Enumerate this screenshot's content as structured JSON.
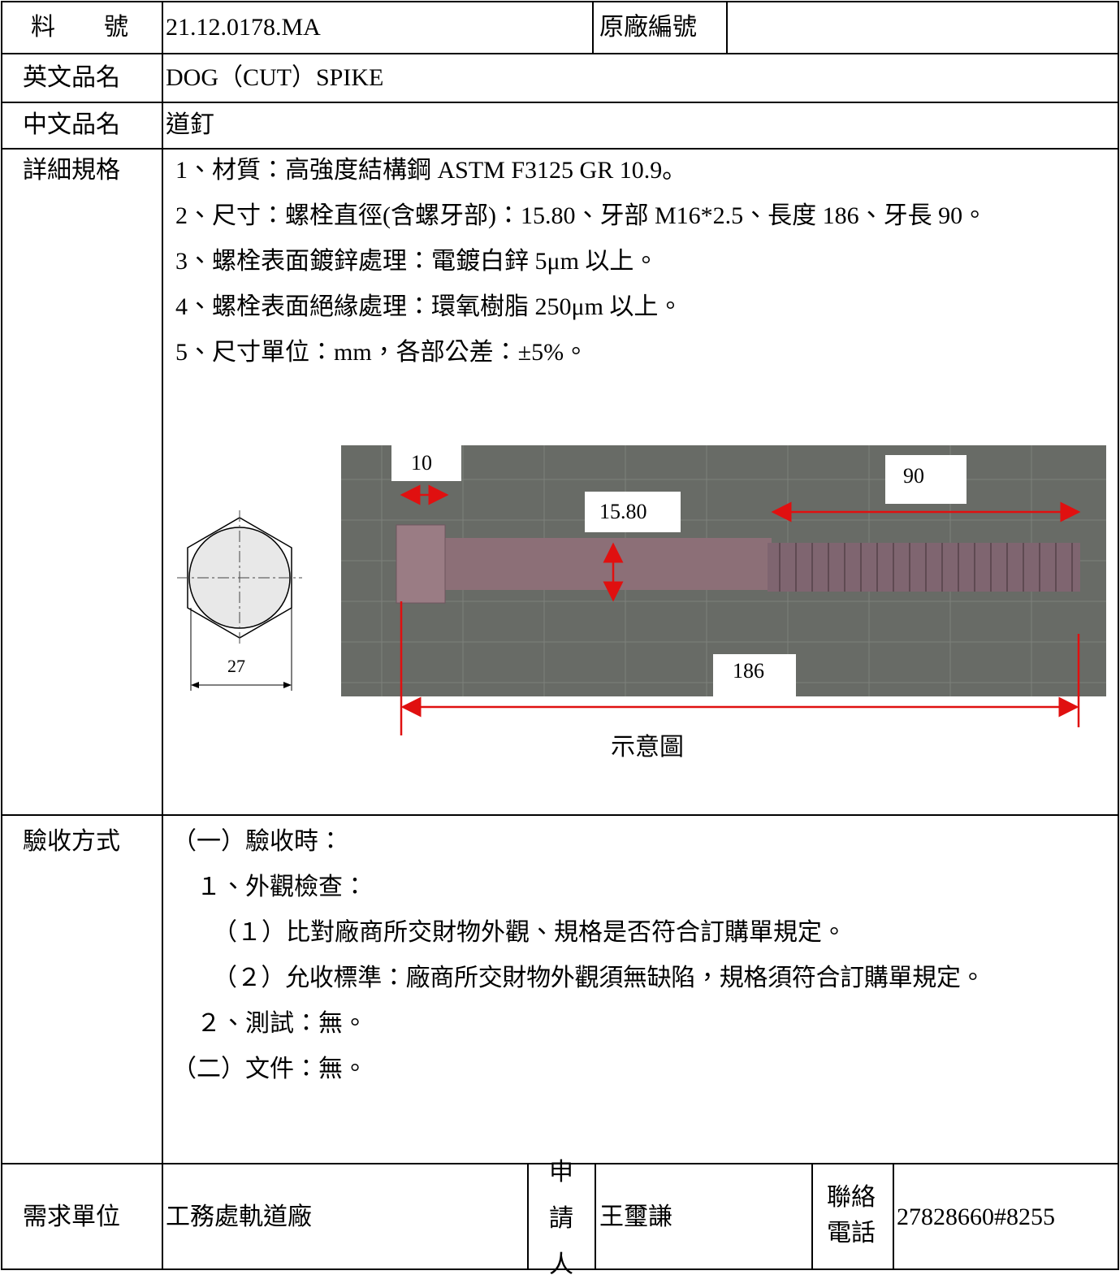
{
  "header": {
    "part_no_label": "料　　號",
    "part_no": "21.12.0178.MA",
    "orig_no_label": "原廠編號",
    "english_name_label": "英文品名",
    "english_name": "DOG（CUT）SPIKE",
    "chinese_name_label": "中文品名",
    "chinese_name": "道釘"
  },
  "spec": {
    "label": "詳細規格",
    "lines": [
      "1、材質：高強度結構鋼 ASTM F3125 GR 10.9。",
      "2、尺寸：螺栓直徑(含螺牙部)：15.80、牙部 M16*2.5、長度 186、牙長 90。",
      "3、螺栓表面鍍鋅處理：電鍍白鋅 5μm 以上。",
      "4、螺栓表面絕緣處理：環氧樹脂 250μm 以上。",
      "5、尺寸單位：mm，各部公差：±5%。"
    ],
    "diagram": {
      "head_length": "10",
      "thread_length": "90",
      "diameter": "15.80",
      "hex_width": "27",
      "total_length": "186",
      "caption": "示意圖"
    }
  },
  "acceptance": {
    "label": "驗收方式",
    "lines": [
      "（一）驗收時：",
      "１、外觀檢查：",
      "（１）比對廠商所交財物外觀、規格是否符合訂購單規定。",
      "（２）允收標準：廠商所交財物外觀須無缺陷，規格須符合訂購單規定。",
      "２、測試：無。",
      "（二）文件：無。"
    ]
  },
  "footer": {
    "unit_label": "需求單位",
    "unit": "工務處軌道廠",
    "applicant_label": "申請人",
    "applicant": "王璽謙",
    "phone_label": "聯絡電話",
    "phone": "27828660#8255"
  }
}
